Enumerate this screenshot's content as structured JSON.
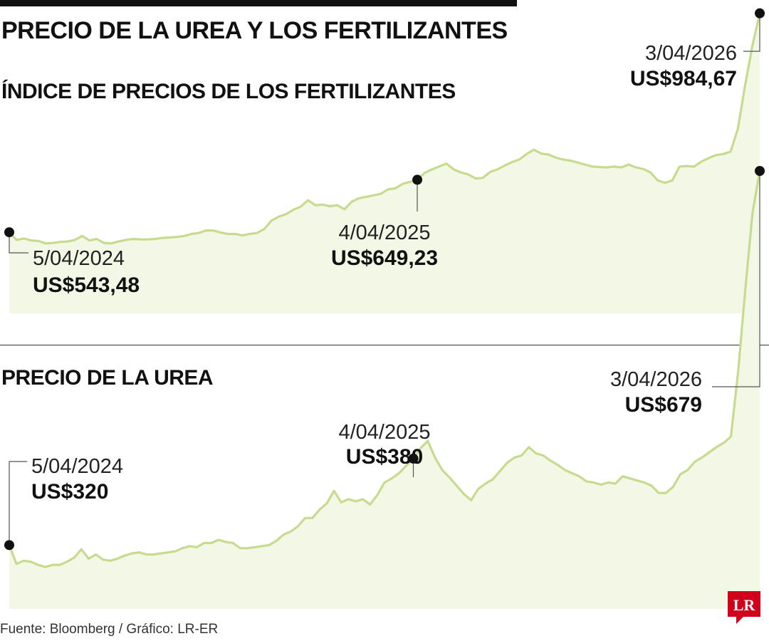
{
  "title": "PRECIO DE LA UREA Y LOS FERTILIZANTES",
  "footer": "Fuente: Bloomberg / Gráfico: LR-ER",
  "logo_text": "LR",
  "colors": {
    "line": "#c7db8f",
    "fill": "#f3f7e6",
    "marker": "#111111",
    "brand": "#d0021b"
  },
  "chart_data": [
    {
      "type": "area",
      "title": "ÍNDICE DE PRECIOS DE LOS FERTILIZANTES",
      "ylim": [
        380,
        1000
      ],
      "x_range": [
        "5/04/2024",
        "3/04/2026"
      ],
      "values": [
        543.48,
        528,
        531,
        527,
        526,
        521,
        522,
        524,
        525,
        528,
        536,
        527,
        530,
        522,
        521,
        525,
        528,
        530,
        529,
        529,
        530,
        532,
        533,
        534,
        536,
        540,
        542,
        547,
        547,
        543,
        540,
        540,
        537,
        540,
        542,
        550,
        567,
        575,
        580,
        589,
        595,
        608,
        598,
        599,
        596,
        598,
        590,
        605,
        612,
        615,
        618,
        621,
        630,
        632,
        641,
        645,
        649.23,
        663,
        670,
        676,
        682,
        670,
        664,
        660,
        652,
        653,
        665,
        670,
        678,
        685,
        690,
        701,
        710,
        702,
        700,
        694,
        690,
        688,
        684,
        680,
        676,
        675,
        674,
        676,
        674,
        680,
        674,
        671,
        664,
        648,
        643,
        648,
        676,
        677,
        676,
        686,
        693,
        699,
        701,
        706,
        752,
        840,
        920,
        984.67
      ],
      "annotations": [
        {
          "date": "5/04/2024",
          "value": "US$543,48"
        },
        {
          "date": "4/04/2025",
          "value": "US$649,23"
        },
        {
          "date": "3/04/2026",
          "value": "US$984,67"
        }
      ]
    },
    {
      "type": "area",
      "title": "PRECIO DE LA UREA",
      "ylim": [
        120,
        720
      ],
      "x_range": [
        "5/04/2024",
        "3/04/2026"
      ],
      "values": [
        320,
        302,
        305,
        304,
        301,
        299,
        301,
        301,
        304,
        308,
        316,
        307,
        311,
        306,
        305,
        307,
        310,
        312,
        313,
        311,
        311,
        312,
        313,
        314,
        317,
        319,
        318,
        322,
        322,
        325,
        323,
        322,
        317,
        317,
        318,
        319,
        320,
        324,
        330,
        333,
        338,
        346,
        346,
        354,
        360,
        372,
        361,
        364,
        362,
        364,
        359,
        368,
        380,
        384,
        389,
        396,
        403,
        413,
        420,
        404,
        392,
        385,
        377,
        369,
        363,
        374,
        379,
        383,
        391,
        399,
        404,
        406,
        414,
        408,
        406,
        401,
        397,
        392,
        389,
        386,
        381,
        380,
        378,
        380,
        379,
        386,
        384,
        382,
        380,
        377,
        370,
        370,
        376,
        388,
        392,
        400,
        404,
        409,
        414,
        418,
        424,
        486,
        565,
        639,
        679
      ],
      "annotations": [
        {
          "date": "5/04/2024",
          "value": "US$320"
        },
        {
          "date": "4/04/2025",
          "value": "US$380"
        },
        {
          "date": "3/04/2026",
          "value": "US$679"
        }
      ]
    }
  ]
}
